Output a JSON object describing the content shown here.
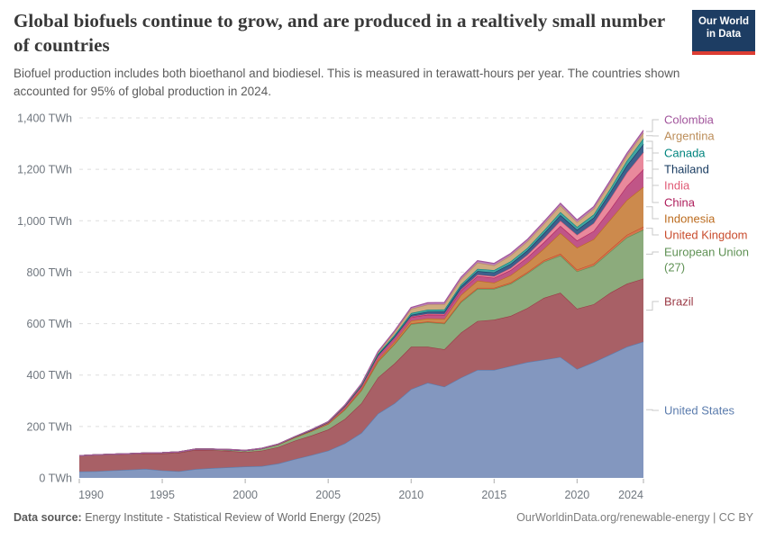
{
  "header": {
    "title": "Global biofuels continue to grow, and are produced in a realtively small number of countries",
    "subtitle": "Biofuel production includes both bioethanol and biodiesel. This is measured in terawatt-hours per year. The countries shown accounted for 95% of global production in 2024."
  },
  "logo": {
    "line1": "Our World",
    "line2": "in Data",
    "bg": "#1d3d63",
    "accent": "#dc3d33"
  },
  "footer": {
    "source_label": "Data source:",
    "source_value": " Energy Institute - Statistical Review of World Energy (2025)",
    "right": "OurWorldinData.org/renewable-energy | CC BY"
  },
  "chart_data": {
    "type": "area",
    "stacked": true,
    "unit": "TWh",
    "x_start": 1990,
    "x_end": 2024,
    "x": [
      1990,
      1991,
      1992,
      1993,
      1994,
      1995,
      1996,
      1997,
      1998,
      1999,
      2000,
      2001,
      2002,
      2003,
      2004,
      2005,
      2006,
      2007,
      2008,
      2009,
      2010,
      2011,
      2012,
      2013,
      2014,
      2015,
      2016,
      2017,
      2018,
      2019,
      2020,
      2021,
      2022,
      2023,
      2024
    ],
    "xticks": [
      {
        "v": 1990,
        "label": "1990"
      },
      {
        "v": 1995,
        "label": "1995"
      },
      {
        "v": 2000,
        "label": "2000"
      },
      {
        "v": 2005,
        "label": "2005"
      },
      {
        "v": 2010,
        "label": "2010"
      },
      {
        "v": 2015,
        "label": "2015"
      },
      {
        "v": 2020,
        "label": "2020"
      },
      {
        "v": 2024,
        "label": "2024"
      }
    ],
    "yticks": [
      {
        "v": 0,
        "label": "0 TWh"
      },
      {
        "v": 200,
        "label": "200 TWh"
      },
      {
        "v": 400,
        "label": "400 TWh"
      },
      {
        "v": 600,
        "label": "600 TWh"
      },
      {
        "v": 800,
        "label": "800 TWh"
      },
      {
        "v": 1000,
        "label": "1,000 TWh"
      },
      {
        "v": 1200,
        "label": "1,200 TWh"
      },
      {
        "v": 1400,
        "label": "1,400 TWh"
      }
    ],
    "ylim": [
      0,
      1400
    ],
    "grid": "dashed-horizontal",
    "legend_position": "right-inline-labels",
    "series": [
      {
        "key": "united-states",
        "name": "United States",
        "color": "#5b7cad",
        "fill": "#8397bf",
        "values": [
          25,
          26,
          29,
          32,
          35,
          29,
          26,
          34,
          38,
          41,
          44,
          46,
          56,
          73,
          89,
          106,
          134,
          175,
          250,
          290,
          345,
          370,
          355,
          390,
          420,
          420,
          435,
          450,
          460,
          470,
          423,
          450,
          480,
          510,
          530
        ]
      },
      {
        "key": "brazil",
        "name": "Brazil",
        "color": "#9b3a46",
        "fill": "#a86066",
        "values": [
          61,
          64,
          62,
          61,
          60,
          66,
          72,
          75,
          70,
          64,
          56,
          60,
          64,
          72,
          76,
          82,
          95,
          115,
          140,
          155,
          165,
          140,
          145,
          175,
          190,
          195,
          195,
          210,
          240,
          250,
          235,
          225,
          240,
          245,
          245
        ]
      },
      {
        "key": "european-union-27",
        "name": "European Union (27)",
        "lines": [
          "European Union",
          "(27)"
        ],
        "color": "#5f9154",
        "fill": "#8cab7c",
        "values": [
          0,
          0,
          1,
          1,
          2,
          3,
          3,
          3,
          4,
          5,
          6,
          8,
          10,
          13,
          17,
          22,
          36,
          50,
          62,
          75,
          88,
          95,
          100,
          118,
          125,
          120,
          125,
          135,
          140,
          145,
          145,
          150,
          160,
          180,
          190
        ]
      },
      {
        "key": "united-kingdom",
        "name": "United Kingdom",
        "color": "#c94c2d",
        "fill": "#d4764f",
        "values": [
          0,
          0,
          0,
          0,
          0,
          0,
          0,
          0,
          0,
          0,
          0,
          0,
          0,
          0,
          0,
          0,
          1,
          1,
          2,
          2,
          3,
          3,
          3,
          4,
          4,
          4,
          5,
          5,
          6,
          7,
          7,
          8,
          9,
          10,
          12
        ]
      },
      {
        "key": "indonesia",
        "name": "Indonesia",
        "color": "#bc6c1f",
        "fill": "#cc8a4d",
        "values": [
          0,
          0,
          0,
          0,
          0,
          0,
          0,
          0,
          0,
          0,
          0,
          0,
          0,
          0,
          0,
          1,
          2,
          4,
          6,
          8,
          10,
          12,
          15,
          24,
          28,
          20,
          28,
          35,
          45,
          80,
          85,
          95,
          115,
          135,
          155
        ]
      },
      {
        "key": "china",
        "name": "China",
        "color": "#ae1e5c",
        "fill": "#c05587",
        "values": [
          0,
          0,
          0,
          0,
          0,
          0,
          0,
          0,
          0,
          0,
          0,
          0,
          1,
          2,
          3,
          4,
          8,
          9,
          12,
          13,
          14,
          15,
          16,
          17,
          18,
          19,
          20,
          22,
          25,
          28,
          28,
          32,
          40,
          55,
          68
        ]
      },
      {
        "key": "india",
        "name": "India",
        "color": "#e05a75",
        "fill": "#e9899c",
        "values": [
          0,
          0,
          0,
          0,
          0,
          0,
          0,
          0,
          0,
          0,
          0,
          0,
          0,
          0,
          0,
          0,
          1,
          1,
          1,
          1,
          2,
          3,
          3,
          4,
          5,
          6,
          8,
          10,
          15,
          20,
          22,
          30,
          42,
          52,
          66
        ]
      },
      {
        "key": "thailand",
        "name": "Thailand",
        "color": "#16395f",
        "fill": "#3f608c",
        "values": [
          0,
          0,
          0,
          0,
          0,
          0,
          0,
          0,
          0,
          0,
          0,
          0,
          0,
          0,
          1,
          1,
          2,
          3,
          5,
          6,
          7,
          8,
          10,
          12,
          14,
          15,
          16,
          17,
          20,
          22,
          20,
          22,
          25,
          28,
          32
        ]
      },
      {
        "key": "canada",
        "name": "Canada",
        "color": "#00847e",
        "fill": "#43a6a2",
        "values": [
          0,
          0,
          0,
          0,
          0,
          0,
          0,
          0,
          0,
          1,
          1,
          1,
          1,
          1,
          2,
          2,
          2,
          3,
          4,
          6,
          7,
          8,
          8,
          8,
          9,
          9,
          10,
          10,
          11,
          12,
          11,
          12,
          14,
          18,
          22
        ]
      },
      {
        "key": "argentina",
        "name": "Argentina",
        "color": "#bc8e5a",
        "fill": "#ceac80",
        "values": [
          0,
          0,
          0,
          0,
          0,
          0,
          0,
          0,
          0,
          0,
          0,
          0,
          0,
          0,
          0,
          0,
          1,
          3,
          6,
          11,
          16,
          20,
          20,
          20,
          24,
          18,
          23,
          25,
          25,
          25,
          18,
          22,
          23,
          20,
          22
        ]
      },
      {
        "key": "colombia",
        "name": "Colombia",
        "color": "#a2559c",
        "fill": "#ba84b4",
        "values": [
          0,
          0,
          0,
          0,
          0,
          0,
          0,
          0,
          0,
          0,
          0,
          0,
          0,
          0,
          0,
          1,
          1,
          2,
          3,
          5,
          6,
          7,
          7,
          8,
          8,
          8,
          8,
          8,
          9,
          9,
          9,
          9,
          9,
          9,
          10
        ]
      }
    ]
  }
}
